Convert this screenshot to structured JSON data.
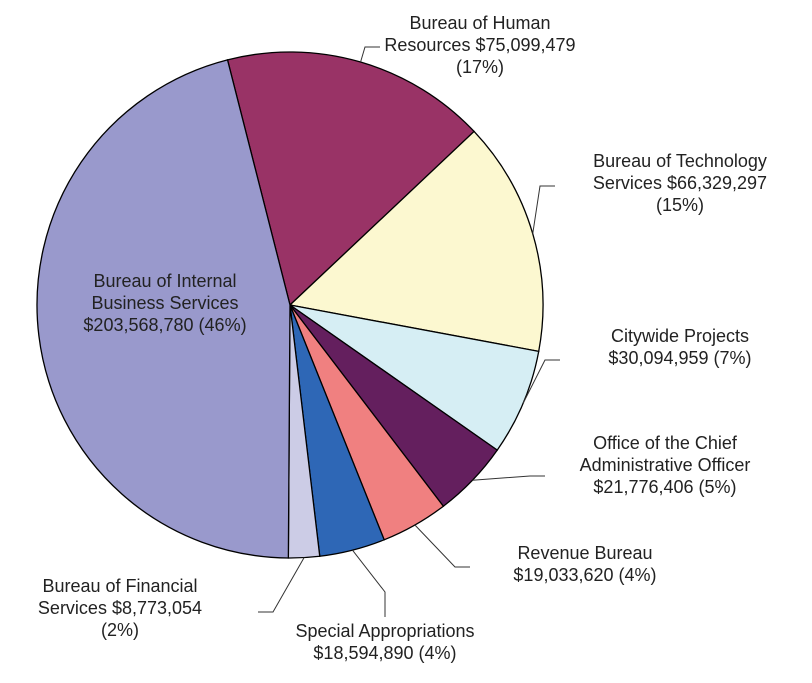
{
  "chart_data": {
    "type": "pie",
    "categories": [
      "Bureau of Human Resources",
      "Bureau of Technology Services",
      "Citywide Projects",
      "Office of the Chief Administrative Officer",
      "Revenue Bureau",
      "Special Appropriations",
      "Bureau of Financial Services",
      "Bureau of Internal Business Services"
    ],
    "values": [
      75099479,
      66329297,
      30094959,
      21776406,
      19033620,
      18594890,
      8773054,
      203568780
    ],
    "value_labels": [
      "$75,099,479",
      "$66,329,297",
      "$30,094,959",
      "$21,776,406",
      "$19,033,620",
      "$18,594,890",
      "$8,773,054",
      "$203,568,780"
    ],
    "percents": [
      17,
      15,
      7,
      5,
      4,
      4,
      2,
      46
    ],
    "percent_labels": [
      "(17%)",
      "(15%)",
      "(7%)",
      "(5%)",
      "(4%)",
      "(4%)",
      "(2%)",
      "(46%)"
    ],
    "colors": [
      "#993366",
      "#fcf8d0",
      "#d6eef4",
      "#641f5e",
      "#f08080",
      "#2e67b6",
      "#cccce6",
      "#9999cc"
    ]
  }
}
